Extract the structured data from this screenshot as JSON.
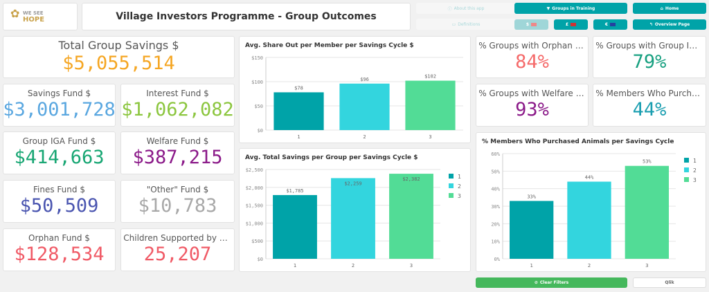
{
  "logo": {
    "text1": "WE SEE",
    "text2": "HOPE"
  },
  "title": "Village Investors Programme - Group Outcomes",
  "nav": {
    "about": "About this app",
    "definitions": "Definitions",
    "groups_training": "Groups in Training",
    "home": "Home",
    "usd": "$",
    "gbp": "£",
    "eur": "€",
    "overview": "Overview Page",
    "clear": "Clear Filters",
    "qlik": "Qlik"
  },
  "kpis": {
    "total": {
      "label": "Total Group Savings $",
      "value": "$5,055,514",
      "color": "#f5a623"
    },
    "savings": {
      "label": "Savings Fund $",
      "value": "$3,001,728",
      "color": "#5aa7e0"
    },
    "interest": {
      "label": "Interest Fund $",
      "value": "$1,062,082",
      "color": "#8cc63f"
    },
    "iga": {
      "label": "Group IGA Fund $",
      "value": "$414,663",
      "color": "#17a673"
    },
    "welfare": {
      "label": "Welfare Fund $",
      "value": "$387,215",
      "color": "#8b1a89"
    },
    "fines": {
      "label": "Fines Fund $",
      "value": "$50,509",
      "color": "#4a55b0"
    },
    "other": {
      "label": "\"Other\" Fund $",
      "value": "$10,783",
      "color": "#a8a8a8"
    },
    "orphan": {
      "label": "Orphan Fund $",
      "value": "$128,534",
      "color": "#f05a66"
    },
    "children": {
      "label": "Children Supported by Orphan...",
      "value": "25,207",
      "color": "#f05a66"
    },
    "pct_orphan": {
      "label": "% Groups with Orphan Fund",
      "value": "84%",
      "color": "#f56a6a"
    },
    "pct_iga": {
      "label": "% Groups with Group IGA Fund",
      "value": "79%",
      "color": "#17a080"
    },
    "pct_welfare": {
      "label": "% Groups with Welfare Fund",
      "value": "93%",
      "color": "#8b1a89"
    },
    "pct_animals": {
      "label": "% Members Who Purchased A...",
      "value": "44%",
      "color": "#1a9eb0"
    }
  },
  "chart_data": [
    {
      "type": "bar",
      "title": "Avg. Share Out per Member per Savings Cycle $",
      "categories": [
        "1",
        "2",
        "3"
      ],
      "values": [
        78,
        96,
        102
      ],
      "labels": [
        "$78",
        "$96",
        "$102"
      ],
      "yticks": [
        "$0",
        "$50",
        "$100",
        "$150"
      ],
      "ylim": [
        0,
        150
      ],
      "colors": [
        "#00a3a8",
        "#33d5de",
        "#52dc96"
      ],
      "legend": []
    },
    {
      "type": "bar",
      "title": "Avg. Total Savings per Group per Savings Cycle $",
      "categories": [
        "1",
        "2",
        "3"
      ],
      "values": [
        1785,
        2259,
        2382
      ],
      "labels": [
        "$1,785",
        "$2,259",
        "$2,382"
      ],
      "yticks": [
        "$0",
        "$500",
        "$1,000",
        "$1,500",
        "$2,000",
        "$2,500"
      ],
      "ylim": [
        0,
        2500
      ],
      "colors": [
        "#00a3a8",
        "#33d5de",
        "#52dc96"
      ],
      "legend": [
        "1",
        "2",
        "3"
      ]
    },
    {
      "type": "bar",
      "title": "% Members Who Purchased Animals per Savings Cycle",
      "categories": [
        "1",
        "2",
        "3"
      ],
      "values": [
        33,
        44,
        53
      ],
      "labels": [
        "33%",
        "44%",
        "53%"
      ],
      "yticks": [
        "0%",
        "10%",
        "20%",
        "30%",
        "40%",
        "50%",
        "60%"
      ],
      "ylim": [
        0,
        60
      ],
      "colors": [
        "#00a3a8",
        "#33d5de",
        "#52dc96"
      ],
      "legend": [
        "1",
        "2",
        "3"
      ]
    }
  ]
}
